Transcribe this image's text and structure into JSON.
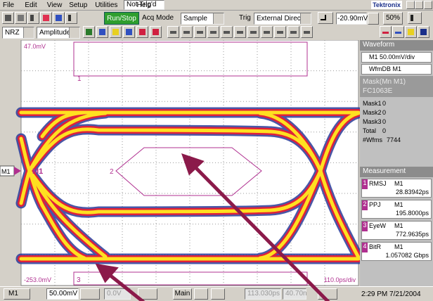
{
  "menu": [
    "File",
    "Edit",
    "View",
    "Setup",
    "Utilities",
    "Help"
  ],
  "trigger_status": "Not Trig'd",
  "brand": "Tektronix",
  "toolbar": {
    "run_stop": "Run/Stop",
    "acq_mode_label": "Acq Mode",
    "acq_mode": "Sample",
    "trig_label": "Trig",
    "trig_source": "External Direct",
    "trig_level": "-20.90mV",
    "trig_percent": "50%"
  },
  "toolbar2": {
    "encoding": "NRZ",
    "measure_type": "Amplitude"
  },
  "display": {
    "top_label": "47.0mV",
    "bottom_label": "-253.0mV",
    "timebase": "110.0ps/div",
    "channel_marker": "M1",
    "masks": [
      "1",
      "2",
      "3"
    ]
  },
  "side_panel": {
    "waveform_header": "Waveform",
    "channel": "M1 50.00mV/div",
    "db": "WfmDB M1",
    "mask_header": "Mask(Mn M1)",
    "mask_standard": "FC1063E",
    "mask_counts": [
      {
        "label": "Mask1",
        "value": 0
      },
      {
        "label": "Mask2",
        "value": 0
      },
      {
        "label": "Mask3",
        "value": 0
      },
      {
        "label": "Total",
        "value": 0
      },
      {
        "label": "#Wfms",
        "value": 7744
      }
    ],
    "measurement_header": "Measurement",
    "measurements": [
      {
        "index": "1",
        "name": "RMSJ",
        "source": "M1",
        "value": "28.83942ps"
      },
      {
        "index": "2",
        "name": "PPJ",
        "source": "M1",
        "value": "195.8000ps"
      },
      {
        "index": "3",
        "name": "EyeW",
        "source": "M1",
        "value": "772.9635ps"
      },
      {
        "index": "4",
        "name": "BitR",
        "source": "M1",
        "value": "1.057082 Gbps"
      }
    ]
  },
  "status_bar": {
    "channel": "M1",
    "scale": "50.00mV",
    "offset": "0.0V",
    "timebase_mode": "Main",
    "position": "113.030ps",
    "record": "40.70n",
    "clock": "2:29 PM 7/21/2004"
  }
}
